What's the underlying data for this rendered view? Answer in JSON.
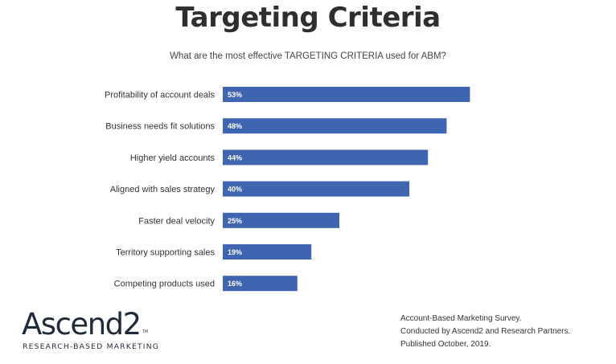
{
  "header": {
    "title": "Targeting Criteria",
    "subtitle": "What are the most effective TARGETING CRITERIA used for ABM?"
  },
  "chart_data": {
    "type": "bar",
    "orientation": "horizontal",
    "categories": [
      "Profitability of account deals",
      "Business needs fit solutions",
      "Higher yield accounts",
      "Aligned with sales strategy",
      "Faster deal velocity",
      "Territory supporting sales",
      "Competing products used"
    ],
    "values": [
      53,
      48,
      44,
      40,
      25,
      19,
      16
    ],
    "value_labels": [
      "53%",
      "48%",
      "44%",
      "40%",
      "25%",
      "19%",
      "16%"
    ],
    "bar_color": "#3f64b0",
    "xlim": [
      0,
      100
    ],
    "grid": false,
    "legend": "none"
  },
  "logo": {
    "wordmark": "Ascend2",
    "trademark": "TM",
    "tagline": "RESEARCH-BASED MARKETING"
  },
  "source": {
    "line1": "Account-Based Marketing Survey.",
    "line2": "Conducted  by Ascend2 and Research Partners.",
    "line3": "Published October, 2019."
  }
}
